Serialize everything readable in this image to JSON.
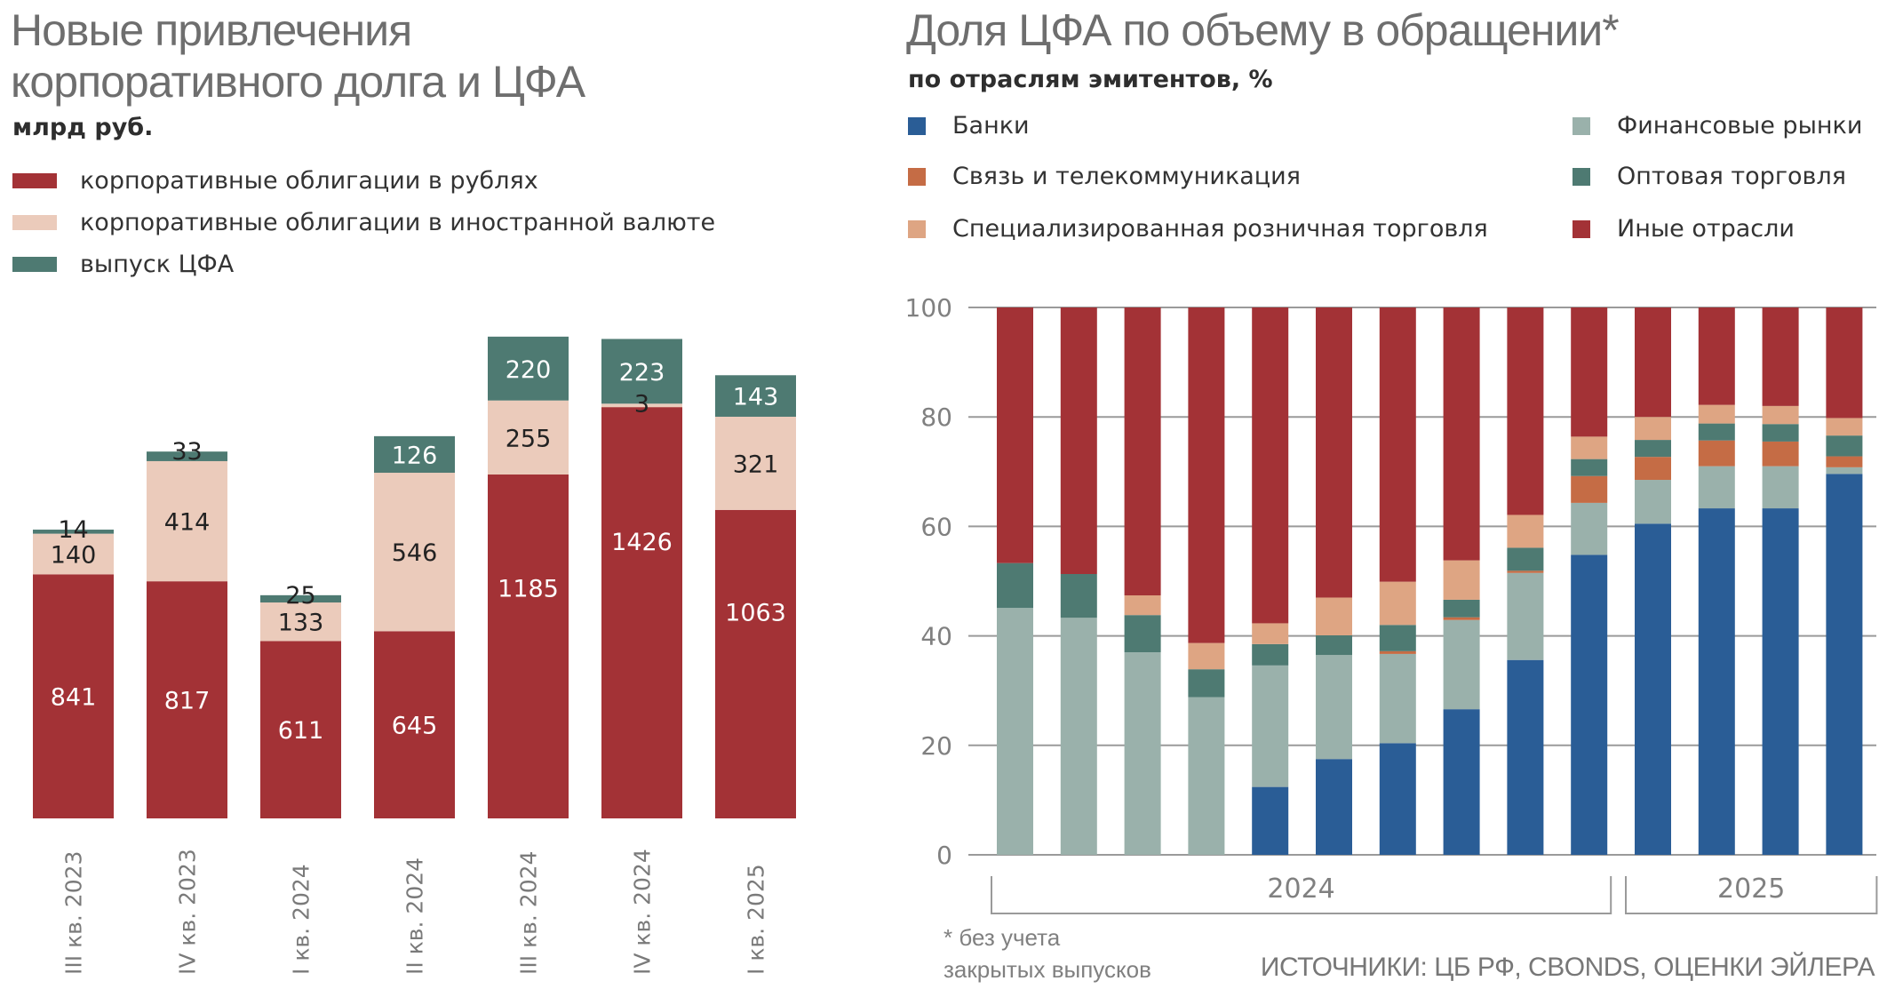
{
  "chart_data": [
    {
      "type": "bar",
      "stacked": true,
      "title": "Новые привлечения корпоративного долга и ЦФА",
      "title_lines": [
        "Новые привлечения",
        "корпоративного долга и ЦФА"
      ],
      "subtitle": "млрд руб.",
      "xlabel": "",
      "ylabel": "млрд руб.",
      "categories": [
        "III кв. 2023",
        "IV кв. 2023",
        "I кв. 2024",
        "II кв. 2024",
        "III кв. 2024",
        "IV кв. 2024",
        "I кв. 2025"
      ],
      "series": [
        {
          "name": "корпоративные облигации в рублях",
          "color": "#a33236",
          "label_color": "#ffffff",
          "values": [
            841,
            817,
            611,
            645,
            1185,
            1426,
            1063
          ]
        },
        {
          "name": "корпоративные облигации в иностранной валюте",
          "color": "#ebcbbb",
          "label_color": "#222222",
          "values": [
            140,
            414,
            133,
            546,
            255,
            3,
            321
          ]
        },
        {
          "name": "выпуск ЦФА",
          "color": "#4e7a72",
          "label_color": "#ffffff",
          "values": [
            14,
            33,
            25,
            126,
            220,
            223,
            143
          ]
        }
      ],
      "data_labels": [
        [
          "841",
          "140",
          "14"
        ],
        [
          "817",
          "414",
          "33"
        ],
        [
          "611",
          "133",
          "25"
        ],
        [
          "645",
          "546",
          "126"
        ],
        [
          "1185",
          "255",
          "220"
        ],
        [
          "1426",
          "3",
          "223"
        ],
        [
          "1063",
          "321",
          "143"
        ]
      ],
      "ylim": [
        0,
        1700
      ],
      "grid": false,
      "legend_position": "top-left"
    },
    {
      "type": "bar",
      "stacked": true,
      "title": "Доля ЦФА по объему в обращении*",
      "subtitle": "по отраслям эмитентов, %",
      "xlabel": "",
      "ylabel": "%",
      "categories": [
        "2024-1",
        "2024-2",
        "2024-3",
        "2024-4",
        "2024-5",
        "2024-6",
        "2024-7",
        "2024-8",
        "2024-9",
        "2024-10",
        "2025-1",
        "2025-2",
        "2025-3",
        "2025-4"
      ],
      "x_groups": [
        {
          "label": "2024",
          "count": 10
        },
        {
          "label": "2025",
          "count": 4
        }
      ],
      "series": [
        {
          "name": "Банки",
          "color": "#2a5d96",
          "values": [
            0,
            0,
            0,
            0,
            12.4,
            17.5,
            20.4,
            26.6,
            35.6,
            54.8,
            60.5,
            63.3,
            63.3,
            69.6
          ]
        },
        {
          "name": "Финансовые рынки",
          "color": "#9ab1ab",
          "values": [
            45.1,
            43.3,
            37.0,
            28.8,
            22.2,
            19.0,
            16.3,
            16.3,
            15.9,
            9.5,
            8.0,
            7.7,
            7.7,
            1.2
          ]
        },
        {
          "name": "Связь и телекоммуникация",
          "color": "#c56c45",
          "values": [
            0,
            0,
            0,
            0,
            0,
            0,
            0.5,
            0.5,
            0.4,
            4.9,
            4.2,
            4.7,
            4.5,
            2.0
          ]
        },
        {
          "name": "Оптовая торговля",
          "color": "#4e7a72",
          "values": [
            8.2,
            8.0,
            6.8,
            5.1,
            3.9,
            3.6,
            4.8,
            3.2,
            4.2,
            3.1,
            3.1,
            3.1,
            3.2,
            3.8
          ]
        },
        {
          "name": "Специализированная розничная торговля",
          "color": "#dea583",
          "values": [
            0,
            0,
            3.6,
            4.8,
            3.8,
            6.9,
            7.9,
            7.2,
            6.0,
            4.1,
            4.2,
            3.4,
            3.3,
            3.2
          ]
        },
        {
          "name": "Иные отрасли",
          "color": "#a33236",
          "values": [
            46.7,
            48.7,
            52.6,
            61.3,
            57.7,
            53.0,
            50.1,
            46.2,
            37.9,
            23.6,
            20.0,
            17.8,
            18.0,
            20.2
          ]
        }
      ],
      "legend_order": [
        "Банки",
        "Финансовые рынки",
        "Связь и телекоммуникация",
        "Оптовая торговля",
        "Специализированная розничная торговля",
        "Иные отрасли"
      ],
      "yticks": [
        "0",
        "20",
        "40",
        "60",
        "80",
        "100"
      ],
      "ylim": [
        0,
        100
      ],
      "grid": true,
      "legend_position": "top"
    }
  ],
  "footnote": {
    "line1": "* без учета",
    "line2": "закрытых выпусков"
  },
  "source": "ИСТОЧНИКИ: ЦБ РФ, CBONDS, ОЦЕНКИ ЭЙЛЕРА"
}
